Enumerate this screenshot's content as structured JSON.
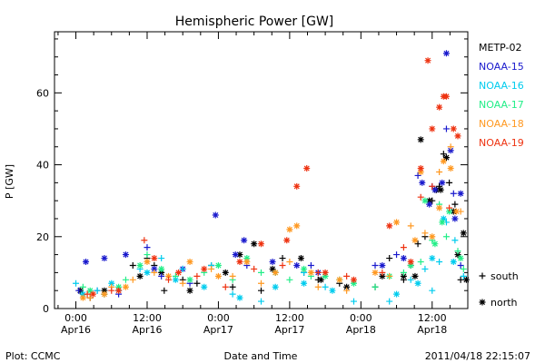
{
  "chart_data": {
    "type": "scatter",
    "title": "Hemispheric Power [GW]",
    "xlabel": "Date and Time",
    "ylabel": "P [GW]",
    "xlim": [
      -0.15,
      2.75
    ],
    "ylim": [
      0,
      77
    ],
    "grid": false,
    "legend_position": "right",
    "x_ticks": [
      {
        "v": 0.0,
        "l1": "0:00",
        "l2": "Apr16"
      },
      {
        "v": 0.5,
        "l1": "12:00",
        "l2": "Apr16"
      },
      {
        "v": 1.0,
        "l1": "0:00",
        "l2": "Apr17"
      },
      {
        "v": 1.5,
        "l1": "12:00",
        "l2": "Apr17"
      },
      {
        "v": 2.0,
        "l1": "0:00",
        "l2": "Apr18"
      },
      {
        "v": 2.5,
        "l1": "12:00",
        "l2": "Apr18"
      }
    ],
    "y_ticks": [
      0,
      20,
      40,
      60
    ],
    "marker_legend": [
      {
        "symbol": "+",
        "label": "south"
      },
      {
        "symbol": "*",
        "label": "north"
      }
    ],
    "series": [
      {
        "name": "METP-02",
        "color": "#000000",
        "south": [
          [
            0.05,
            4
          ],
          [
            0.1,
            3
          ],
          [
            0.2,
            4
          ],
          [
            0.3,
            5
          ],
          [
            0.4,
            12
          ],
          [
            0.5,
            14
          ],
          [
            0.55,
            12
          ],
          [
            0.62,
            5
          ],
          [
            0.75,
            8
          ],
          [
            0.85,
            7
          ],
          [
            0.95,
            12
          ],
          [
            1.1,
            6
          ],
          [
            1.3,
            5
          ],
          [
            1.45,
            14
          ],
          [
            1.6,
            10
          ],
          [
            1.7,
            8
          ],
          [
            1.85,
            7
          ],
          [
            2.1,
            6
          ],
          [
            2.2,
            14
          ],
          [
            2.3,
            8
          ],
          [
            2.35,
            12
          ],
          [
            2.4,
            18
          ],
          [
            2.45,
            20
          ],
          [
            2.5,
            30
          ],
          [
            2.55,
            34
          ],
          [
            2.58,
            43
          ],
          [
            2.62,
            35
          ],
          [
            2.66,
            29
          ],
          [
            2.7,
            8
          ]
        ],
        "north": [
          [
            0.03,
            5
          ],
          [
            0.2,
            5
          ],
          [
            0.45,
            9
          ],
          [
            0.6,
            10
          ],
          [
            0.8,
            5
          ],
          [
            1.05,
            10
          ],
          [
            1.15,
            15
          ],
          [
            1.25,
            18
          ],
          [
            1.38,
            11
          ],
          [
            1.58,
            14
          ],
          [
            1.72,
            8
          ],
          [
            1.9,
            6
          ],
          [
            2.15,
            9
          ],
          [
            2.3,
            9
          ],
          [
            2.38,
            9
          ],
          [
            2.42,
            47
          ],
          [
            2.48,
            30
          ],
          [
            2.53,
            33
          ],
          [
            2.56,
            33
          ],
          [
            2.6,
            42
          ],
          [
            2.65,
            27
          ],
          [
            2.68,
            15
          ],
          [
            2.72,
            21
          ],
          [
            2.74,
            8
          ]
        ]
      },
      {
        "name": "NOAA-15",
        "color": "#1a1acd",
        "south": [
          [
            0.02,
            5
          ],
          [
            0.15,
            5
          ],
          [
            0.3,
            4
          ],
          [
            0.5,
            17
          ],
          [
            0.6,
            9
          ],
          [
            0.8,
            7
          ],
          [
            1.2,
            12
          ],
          [
            1.4,
            10
          ],
          [
            1.65,
            12
          ],
          [
            2.1,
            12
          ],
          [
            2.25,
            15
          ],
          [
            2.4,
            37
          ],
          [
            2.5,
            34
          ],
          [
            2.6,
            50
          ],
          [
            2.65,
            32
          ],
          [
            2.7,
            12
          ]
        ],
        "north": [
          [
            0.07,
            13
          ],
          [
            0.2,
            14
          ],
          [
            0.35,
            15
          ],
          [
            0.55,
            11
          ],
          [
            0.75,
            11
          ],
          [
            0.98,
            26
          ],
          [
            1.12,
            15
          ],
          [
            1.18,
            19
          ],
          [
            1.38,
            13
          ],
          [
            1.55,
            12
          ],
          [
            1.7,
            10
          ],
          [
            2.15,
            12
          ],
          [
            2.3,
            14
          ],
          [
            2.43,
            35
          ],
          [
            2.48,
            29
          ],
          [
            2.52,
            33
          ],
          [
            2.57,
            35
          ],
          [
            2.6,
            71
          ],
          [
            2.63,
            44
          ],
          [
            2.66,
            25
          ],
          [
            2.7,
            32
          ]
        ]
      },
      {
        "name": "NOAA-16",
        "color": "#00ccee",
        "south": [
          [
            0.0,
            7
          ],
          [
            0.15,
            5
          ],
          [
            0.3,
            5
          ],
          [
            0.45,
            11
          ],
          [
            0.6,
            14
          ],
          [
            0.75,
            11
          ],
          [
            0.95,
            12
          ],
          [
            1.1,
            4
          ],
          [
            1.3,
            2
          ],
          [
            1.6,
            10
          ],
          [
            1.75,
            6
          ],
          [
            1.95,
            2
          ],
          [
            2.2,
            2
          ],
          [
            2.35,
            8
          ],
          [
            2.45,
            11
          ],
          [
            2.5,
            5
          ],
          [
            2.55,
            13
          ],
          [
            2.6,
            24
          ],
          [
            2.66,
            19
          ],
          [
            2.72,
            9
          ]
        ],
        "north": [
          [
            0.05,
            4
          ],
          [
            0.25,
            7
          ],
          [
            0.5,
            10
          ],
          [
            0.7,
            8
          ],
          [
            0.9,
            6
          ],
          [
            1.15,
            3
          ],
          [
            1.4,
            6
          ],
          [
            1.6,
            7
          ],
          [
            1.8,
            5
          ],
          [
            2.25,
            4
          ],
          [
            2.4,
            7
          ],
          [
            2.5,
            14
          ],
          [
            2.58,
            25
          ],
          [
            2.65,
            13
          ]
        ]
      },
      {
        "name": "NOAA-17",
        "color": "#22ee88",
        "south": [
          [
            0.05,
            6
          ],
          [
            0.2,
            4
          ],
          [
            0.35,
            8
          ],
          [
            0.5,
            15
          ],
          [
            0.7,
            9
          ],
          [
            0.9,
            10
          ],
          [
            1.1,
            8
          ],
          [
            1.3,
            10
          ],
          [
            1.5,
            8
          ],
          [
            1.65,
            9
          ],
          [
            1.85,
            8
          ],
          [
            2.1,
            6
          ],
          [
            2.3,
            10
          ],
          [
            2.42,
            13
          ],
          [
            2.5,
            19
          ],
          [
            2.55,
            29
          ],
          [
            2.6,
            20
          ],
          [
            2.68,
            16
          ],
          [
            2.72,
            11
          ]
        ],
        "north": [
          [
            0.1,
            5
          ],
          [
            0.3,
            6
          ],
          [
            0.45,
            12
          ],
          [
            0.6,
            11
          ],
          [
            0.8,
            8
          ],
          [
            1.0,
            12
          ],
          [
            1.2,
            14
          ],
          [
            1.4,
            10
          ],
          [
            1.6,
            11
          ],
          [
            1.75,
            9
          ],
          [
            1.95,
            7
          ],
          [
            2.2,
            9
          ],
          [
            2.35,
            12
          ],
          [
            2.45,
            30
          ],
          [
            2.52,
            18
          ],
          [
            2.57,
            24
          ],
          [
            2.62,
            27
          ],
          [
            2.7,
            14
          ]
        ]
      },
      {
        "name": "NOAA-18",
        "color": "#ff9922",
        "south": [
          [
            0.1,
            3
          ],
          [
            0.25,
            6
          ],
          [
            0.4,
            8
          ],
          [
            0.55,
            10
          ],
          [
            0.75,
            7
          ],
          [
            0.95,
            11
          ],
          [
            1.1,
            9
          ],
          [
            1.3,
            7
          ],
          [
            1.5,
            13
          ],
          [
            1.7,
            6
          ],
          [
            1.9,
            5
          ],
          [
            2.2,
            9
          ],
          [
            2.35,
            23
          ],
          [
            2.45,
            21
          ],
          [
            2.55,
            38
          ],
          [
            2.63,
            45
          ],
          [
            2.7,
            27
          ]
        ],
        "north": [
          [
            0.05,
            3
          ],
          [
            0.2,
            4
          ],
          [
            0.35,
            6
          ],
          [
            0.5,
            13
          ],
          [
            0.65,
            9
          ],
          [
            0.8,
            13
          ],
          [
            1.0,
            9
          ],
          [
            1.2,
            13
          ],
          [
            1.4,
            10
          ],
          [
            1.5,
            22
          ],
          [
            1.55,
            23
          ],
          [
            1.65,
            10
          ],
          [
            1.85,
            8
          ],
          [
            2.1,
            10
          ],
          [
            2.25,
            24
          ],
          [
            2.38,
            19
          ],
          [
            2.42,
            38
          ],
          [
            2.5,
            20
          ],
          [
            2.55,
            28
          ],
          [
            2.58,
            41
          ],
          [
            2.63,
            39
          ],
          [
            2.67,
            27
          ]
        ]
      },
      {
        "name": "NOAA-19",
        "color": "#ee3311",
        "south": [
          [
            0.08,
            4
          ],
          [
            0.25,
            5
          ],
          [
            0.48,
            19
          ],
          [
            0.65,
            8
          ],
          [
            0.85,
            9
          ],
          [
            1.05,
            6
          ],
          [
            1.25,
            11
          ],
          [
            1.45,
            12
          ],
          [
            1.7,
            10
          ],
          [
            1.9,
            9
          ],
          [
            2.15,
            10
          ],
          [
            2.3,
            17
          ],
          [
            2.42,
            31
          ],
          [
            2.5,
            34
          ],
          [
            2.62,
            28
          ]
        ],
        "north": [
          [
            0.12,
            4
          ],
          [
            0.3,
            5
          ],
          [
            0.55,
            14
          ],
          [
            0.72,
            10
          ],
          [
            0.9,
            11
          ],
          [
            1.15,
            13
          ],
          [
            1.3,
            18
          ],
          [
            1.48,
            19
          ],
          [
            1.55,
            34
          ],
          [
            1.62,
            39
          ],
          [
            1.75,
            10
          ],
          [
            1.95,
            8
          ],
          [
            2.2,
            23
          ],
          [
            2.35,
            13
          ],
          [
            2.42,
            39
          ],
          [
            2.47,
            69
          ],
          [
            2.5,
            50
          ],
          [
            2.55,
            56
          ],
          [
            2.58,
            59
          ],
          [
            2.6,
            59
          ],
          [
            2.65,
            50
          ],
          [
            2.68,
            48
          ]
        ]
      }
    ]
  },
  "footer": {
    "left": "Plot: CCMC",
    "right": "2011/04/18 22:15:07"
  }
}
